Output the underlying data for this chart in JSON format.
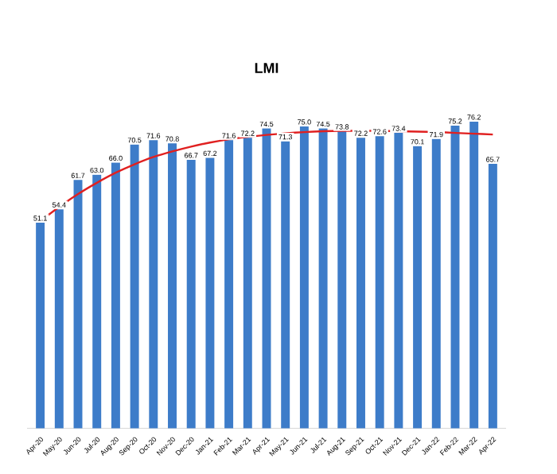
{
  "chart_data": {
    "type": "bar",
    "title": "LMI",
    "categories": [
      "Apr-20",
      "May-20",
      "Jun-20",
      "Jul-20",
      "Aug-20",
      "Sep-20",
      "Oct-20",
      "Nov-20",
      "Dec-20",
      "Jan-21",
      "Feb-21",
      "Mar-21",
      "Apr-21",
      "May-21",
      "Jun-21",
      "Jul-21",
      "Aug-21",
      "Sep-21",
      "Oct-21",
      "Nov-21",
      "Dec-21",
      "Jan-22",
      "Feb-22",
      "Mar-22",
      "Apr-22"
    ],
    "series": [
      {
        "color": "#3d7cc9",
        "values": [
          51.1,
          54.4,
          61.7,
          63.0,
          66.0,
          70.5,
          71.6,
          70.8,
          66.7,
          67.2,
          71.6,
          72.2,
          74.5,
          71.3,
          75.0,
          74.5,
          73.8,
          72.2,
          72.6,
          73.4,
          70.1,
          71.9,
          75.2,
          76.2,
          65.7
        ],
        "value_labels": [
          "51.1",
          "54.4",
          "61.7",
          "63.0",
          "66.0",
          "70.5",
          "71.6",
          "70.8",
          "66.7",
          "67.2",
          "71.6",
          "72.2",
          "74.5",
          "71.3",
          "75.0",
          "74.5",
          "73.8",
          "72.2",
          "72.6",
          "73.4",
          "70.1",
          "71.9",
          "75.2",
          "76.2",
          "65.7"
        ]
      },
      {
        "type": "line",
        "color": "#e02020",
        "values": [
          51.5,
          55,
          58.2,
          61,
          63.5,
          65.6,
          67.4,
          68.8,
          70,
          71,
          71.8,
          72.4,
          72.9,
          73.3,
          73.6,
          73.8,
          73.9,
          73.9,
          73.9,
          73.8,
          73.7,
          73.6,
          73.4,
          73.2,
          73.0
        ]
      }
    ]
  }
}
